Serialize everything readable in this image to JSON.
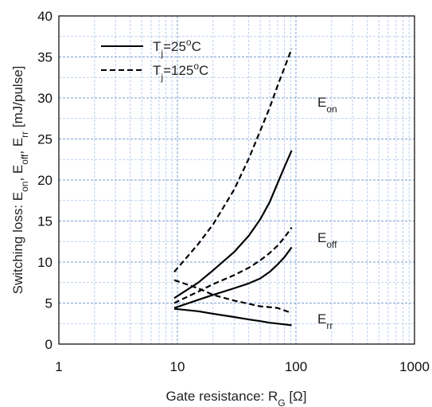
{
  "chart_data": {
    "type": "line",
    "xscale": "log",
    "xlim": [
      1,
      1000
    ],
    "ylim": [
      0,
      40
    ],
    "grid": true,
    "legend_position": "top-left",
    "xticks": [
      "1",
      "10",
      "100",
      "1000"
    ],
    "yticks": [
      "0",
      "5",
      "10",
      "15",
      "20",
      "25",
      "30",
      "35",
      "40"
    ],
    "xlabel": {
      "prefix": "Gate resistance: R",
      "sub": "G",
      "suffix": " [Ω]"
    },
    "ylabel": [
      {
        "t": "Switching loss: E"
      },
      {
        "t": "on",
        "sub": true
      },
      {
        "t": ", E"
      },
      {
        "t": "off",
        "sub": true
      },
      {
        "t": ", E"
      },
      {
        "t": "rr",
        "sub": true
      },
      {
        "t": " [mJ/pulse]"
      }
    ],
    "legend": [
      {
        "style": "solid",
        "parts": [
          {
            "t": "T"
          },
          {
            "t": "j",
            "sub": true
          },
          {
            "t": "=25"
          },
          {
            "t": "o",
            "sup": true
          },
          {
            "t": "C"
          }
        ]
      },
      {
        "style": "dashed",
        "parts": [
          {
            "t": "T"
          },
          {
            "t": "j",
            "sub": true
          },
          {
            "t": "=125"
          },
          {
            "t": "o",
            "sup": true
          },
          {
            "t": "C"
          }
        ]
      }
    ],
    "annotations": [
      {
        "base": "E",
        "sub": "on",
        "x": 115,
        "y": 29.5
      },
      {
        "base": "E",
        "sub": "off",
        "x": 115,
        "y": 13
      },
      {
        "base": "E",
        "sub": "rr",
        "x": 115,
        "y": 3.1
      }
    ],
    "series": [
      {
        "style": "solid",
        "x": [
          9.4,
          15,
          20,
          30,
          40,
          50,
          60,
          70,
          80,
          92
        ],
        "y": [
          5.6,
          7.5,
          9.0,
          11.2,
          13.2,
          15.2,
          17.3,
          19.6,
          21.6,
          23.6
        ]
      },
      {
        "style": "dashed",
        "x": [
          9.4,
          15,
          20,
          30,
          40,
          50,
          60,
          70,
          80,
          92
        ],
        "y": [
          8.8,
          12.2,
          14.6,
          18.8,
          22.6,
          26.0,
          28.8,
          31.5,
          33.7,
          36.0
        ]
      },
      {
        "style": "solid",
        "x": [
          9.4,
          15,
          20,
          30,
          40,
          50,
          60,
          70,
          80,
          92
        ],
        "y": [
          4.4,
          5.4,
          6.0,
          6.8,
          7.4,
          8.0,
          8.8,
          9.7,
          10.6,
          11.8
        ]
      },
      {
        "style": "dashed",
        "x": [
          9.4,
          15,
          20,
          30,
          40,
          50,
          60,
          70,
          80,
          92
        ],
        "y": [
          5.0,
          6.4,
          7.3,
          8.4,
          9.3,
          10.2,
          11.1,
          12.0,
          13.0,
          14.2
        ]
      },
      {
        "style": "solid",
        "x": [
          9.4,
          15,
          20,
          30,
          40,
          50,
          60,
          70,
          80,
          92
        ],
        "y": [
          4.3,
          4.0,
          3.7,
          3.3,
          3.0,
          2.8,
          2.6,
          2.5,
          2.4,
          2.3
        ]
      },
      {
        "style": "dashed",
        "x": [
          9.4,
          15,
          20,
          30,
          40,
          50,
          60,
          70,
          80,
          92
        ],
        "y": [
          7.8,
          6.8,
          6.0,
          5.3,
          4.9,
          4.6,
          4.5,
          4.4,
          4.1,
          3.8
        ]
      }
    ]
  }
}
